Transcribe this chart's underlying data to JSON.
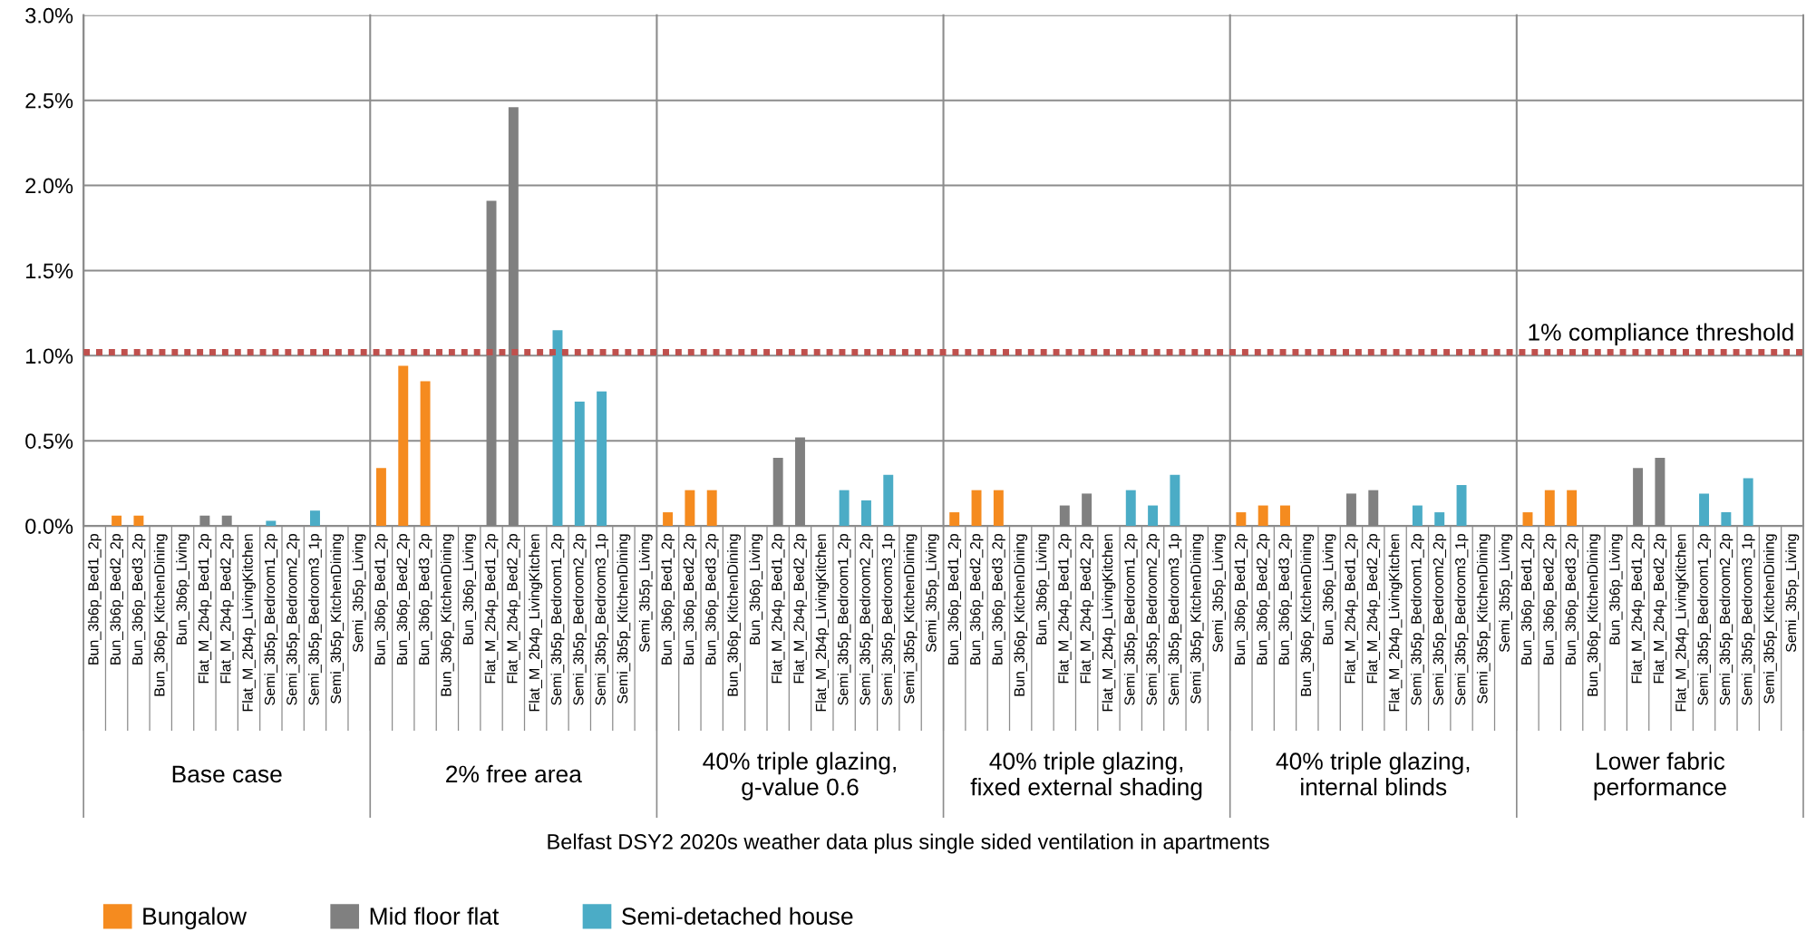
{
  "chart_data": {
    "type": "bar",
    "categories": [
      "Bun_3b6p_Bed1_2p",
      "Bun_3b6p_Bed2_2p",
      "Bun_3b6p_Bed3_2p",
      "Bun_3b6p_KitchenDining",
      "Bun_3b6p_Living",
      "Flat_M_2b4p_Bed1_2p",
      "Flat_M_2b4p_Bed2_2p",
      "Flat_M_2b4p_LivingKitchen",
      "Semi_3b5p_Bedroom1_2p",
      "Semi_3b5p_Bedroom2_2p",
      "Semi_3b5p_Bedroom3_1p",
      "Semi_3b5p_KitchenDining",
      "Semi_3b5p_Living",
      "Bun_3b6p_Bed1_2p",
      "Bun_3b6p_Bed2_2p",
      "Bun_3b6p_Bed3_2p",
      "Bun_3b6p_KitchenDining",
      "Bun_3b6p_Living",
      "Flat_M_2b4p_Bed1_2p",
      "Flat_M_2b4p_Bed2_2p",
      "Flat_M_2b4p_LivingKitchen",
      "Semi_3b5p_Bedroom1_2p",
      "Semi_3b5p_Bedroom2_2p",
      "Semi_3b5p_Bedroom3_1p",
      "Semi_3b5p_KitchenDining",
      "Semi_3b5p_Living",
      "Bun_3b6p_Bed1_2p",
      "Bun_3b6p_Bed2_2p",
      "Bun_3b6p_Bed3_2p",
      "Bun_3b6p_KitchenDining",
      "Bun_3b6p_Living",
      "Flat_M_2b4p_Bed1_2p",
      "Flat_M_2b4p_Bed2_2p",
      "Flat_M_2b4p_LivingKitchen",
      "Semi_3b5p_Bedroom1_2p",
      "Semi_3b5p_Bedroom2_2p",
      "Semi_3b5p_Bedroom3_1p",
      "Semi_3b5p_KitchenDining",
      "Semi_3b5p_Living",
      "Bun_3b6p_Bed1_2p",
      "Bun_3b6p_Bed2_2p",
      "Bun_3b6p_Bed3_2p",
      "Bun_3b6p_KitchenDining",
      "Bun_3b6p_Living",
      "Flat_M_2b4p_Bed1_2p",
      "Flat_M_2b4p_Bed2_2p",
      "Flat_M_2b4p_LivingKitchen",
      "Semi_3b5p_Bedroom1_2p",
      "Semi_3b5p_Bedroom2_2p",
      "Semi_3b5p_Bedroom3_1p",
      "Semi_3b5p_KitchenDining",
      "Semi_3b5p_Living",
      "Bun_3b6p_Bed1_2p",
      "Bun_3b6p_Bed2_2p",
      "Bun_3b6p_Bed3_2p",
      "Bun_3b6p_KitchenDining",
      "Bun_3b6p_Living",
      "Flat_M_2b4p_Bed1_2p",
      "Flat_M_2b4p_Bed2_2p",
      "Flat_M_2b4p_LivingKitchen",
      "Semi_3b5p_Bedroom1_2p",
      "Semi_3b5p_Bedroom2_2p",
      "Semi_3b5p_Bedroom3_1p",
      "Semi_3b5p_KitchenDining",
      "Semi_3b5p_Living",
      "Bun_3b6p_Bed1_2p",
      "Bun_3b6p_Bed2_2p",
      "Bun_3b6p_Bed3_2p",
      "Bun_3b6p_KitchenDining",
      "Bun_3b6p_Living",
      "Flat_M_2b4p_Bed1_2p",
      "Flat_M_2b4p_Bed2_2p",
      "Flat_M_2b4p_LivingKitchen",
      "Semi_3b5p_Bedroom1_2p",
      "Semi_3b5p_Bedroom2_2p",
      "Semi_3b5p_Bedroom3_1p",
      "Semi_3b5p_KitchenDining",
      "Semi_3b5p_Living"
    ],
    "annotations": [
      "Base case",
      "2% free area",
      "40% triple glazing,\ng-value 0.6",
      "40% triple glazing,\nfixed external shading",
      "40% triple glazing,\ninternal blinds",
      "Lower fabric\nperformance",
      "Belfast DSY2 2020s weather data plus single sided ventilation in apartments"
    ],
    "series": [
      {
        "name": "Bungalow",
        "color": "#f58b1f",
        "values": [
          0,
          0.06,
          0.06,
          0,
          0,
          null,
          null,
          null,
          null,
          null,
          null,
          null,
          null,
          0.34,
          0.94,
          0.85,
          0,
          0,
          null,
          null,
          null,
          null,
          null,
          null,
          null,
          null,
          0.08,
          0.21,
          0.21,
          0,
          0,
          null,
          null,
          null,
          null,
          null,
          null,
          null,
          null,
          0.08,
          0.21,
          0.21,
          0,
          0,
          null,
          null,
          null,
          null,
          null,
          null,
          null,
          null,
          0.08,
          0.12,
          0.12,
          0,
          0,
          null,
          null,
          null,
          null,
          null,
          null,
          null,
          null,
          0.08,
          0.21,
          0.21,
          0,
          0,
          null,
          null,
          null,
          null,
          null,
          null,
          null,
          null
        ]
      },
      {
        "name": "Mid floor flat",
        "color": "#808080",
        "values": [
          null,
          null,
          null,
          null,
          null,
          0.06,
          0.06,
          0,
          null,
          null,
          null,
          null,
          null,
          null,
          null,
          null,
          null,
          null,
          1.91,
          2.46,
          0,
          null,
          null,
          null,
          null,
          null,
          null,
          null,
          null,
          null,
          null,
          0.4,
          0.52,
          0,
          null,
          null,
          null,
          null,
          null,
          null,
          null,
          null,
          null,
          null,
          0.12,
          0.19,
          0,
          null,
          null,
          null,
          null,
          null,
          null,
          null,
          null,
          null,
          null,
          0.19,
          0.21,
          0,
          null,
          null,
          null,
          null,
          null,
          null,
          null,
          null,
          null,
          null,
          0.34,
          0.4,
          0,
          null,
          null,
          null,
          null,
          null
        ]
      },
      {
        "name": "Semi-detached house",
        "color": "#4bacc6",
        "values": [
          null,
          null,
          null,
          null,
          null,
          null,
          null,
          null,
          0.03,
          0,
          0.09,
          0,
          0,
          null,
          null,
          null,
          null,
          null,
          null,
          null,
          null,
          1.15,
          0.73,
          0.79,
          0,
          0,
          null,
          null,
          null,
          null,
          null,
          null,
          null,
          null,
          0.21,
          0.15,
          0.3,
          0,
          0,
          null,
          null,
          null,
          null,
          null,
          null,
          null,
          null,
          0.21,
          0.12,
          0.3,
          0,
          0,
          null,
          null,
          null,
          null,
          null,
          null,
          null,
          null,
          0.12,
          0.08,
          0.24,
          0,
          0,
          null,
          null,
          null,
          null,
          null,
          null,
          null,
          null,
          0.19,
          0.08,
          0.28,
          0,
          0
        ]
      }
    ],
    "ylim": [
      0,
      3
    ],
    "yticks": [
      {
        "value": 0,
        "label": "0.0%"
      },
      {
        "value": 0.5,
        "label": "0.5%"
      },
      {
        "value": 1,
        "label": "1.0%"
      },
      {
        "value": 1.5,
        "label": "1.5%"
      },
      {
        "value": 2,
        "label": "2.0%"
      },
      {
        "value": 2.5,
        "label": "2.5%"
      },
      {
        "value": 3,
        "label": "3.0%"
      }
    ],
    "ref_lines": [
      {
        "axis": "y",
        "value": 1.02,
        "label": "1% compliance threshold",
        "color": "#c0504d",
        "line_style": "dotted"
      }
    ],
    "grid": "y",
    "legend": "bottom"
  }
}
